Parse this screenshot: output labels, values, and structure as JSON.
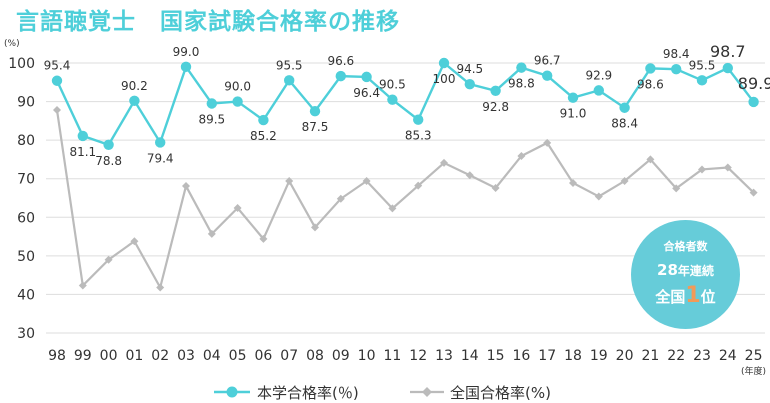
{
  "title": "言語聴覚士　国家試験合格率の推移",
  "chart_data": {
    "type": "line",
    "y_unit": "(%)",
    "x_unit": "(年度)",
    "ylim": [
      30,
      100
    ],
    "yticks": [
      30,
      40,
      50,
      60,
      70,
      80,
      90,
      100
    ],
    "categories": [
      "98",
      "99",
      "00",
      "01",
      "02",
      "03",
      "04",
      "05",
      "06",
      "07",
      "08",
      "09",
      "10",
      "11",
      "12",
      "13",
      "14",
      "15",
      "16",
      "17",
      "18",
      "19",
      "20",
      "21",
      "22",
      "23",
      "24",
      "25"
    ],
    "series": [
      {
        "name": "本学合格率(％)",
        "color": "#4ecfd9",
        "values": [
          95.4,
          81.1,
          78.8,
          90.2,
          79.4,
          99.0,
          89.5,
          90.0,
          85.2,
          95.5,
          87.5,
          96.6,
          96.4,
          90.5,
          85.3,
          100,
          94.5,
          92.8,
          98.8,
          96.7,
          91.0,
          92.9,
          88.4,
          98.6,
          98.4,
          95.5,
          98.7,
          89.9
        ],
        "labels": [
          "95.4",
          "81.1",
          "78.8",
          "90.2",
          "79.4",
          "99.0",
          "89.5",
          "90.0",
          "85.2",
          "95.5",
          "87.5",
          "96.6",
          "96.4",
          "90.5",
          "85.3",
          "100",
          "94.5",
          "92.8",
          "98.8",
          "96.7",
          "91.0",
          "92.9",
          "88.4",
          "98.6",
          "98.4",
          "95.5",
          "98.7",
          "89.9"
        ]
      },
      {
        "name": "全国合格率(%)",
        "color": "#bbbbbb",
        "values": [
          87.8,
          42.3,
          49.0,
          53.8,
          41.8,
          68.1,
          55.7,
          62.4,
          54.4,
          69.4,
          57.4,
          64.8,
          69.4,
          62.3,
          68.2,
          74.1,
          70.9,
          67.6,
          75.9,
          79.3,
          68.9,
          65.4,
          69.4,
          75.0,
          67.5,
          72.4,
          72.9,
          66.4
        ]
      }
    ]
  },
  "badge": {
    "line1": "合格者数",
    "line2_num": "28",
    "line2_text": "年連続",
    "line3_a": "全国",
    "line3_num": "1",
    "line3_b": "位"
  }
}
